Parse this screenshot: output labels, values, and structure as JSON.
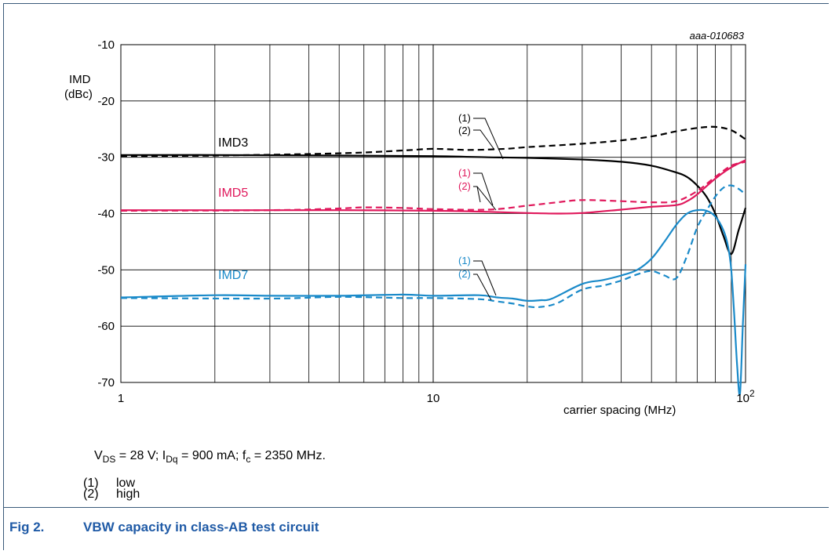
{
  "chart_data": {
    "type": "line",
    "code": "aaa-010683",
    "ylabel": "IMD",
    "yunit": "(dBc)",
    "xlabel": "carrier spacing (MHz)",
    "xscale": "log",
    "xlim": [
      1,
      100
    ],
    "ylim": [
      -70,
      -10
    ],
    "grid": true,
    "xticks": [
      {
        "value": 1,
        "label": "1"
      },
      {
        "value": 10,
        "label": "10"
      },
      {
        "value": 100,
        "label": "10",
        "sup": "2"
      }
    ],
    "yticks": [
      {
        "value": -10,
        "label": "-10"
      },
      {
        "value": -20,
        "label": "-20"
      },
      {
        "value": -30,
        "label": "-30"
      },
      {
        "value": -40,
        "label": "-40"
      },
      {
        "value": -50,
        "label": "-50"
      },
      {
        "value": -60,
        "label": "-60"
      },
      {
        "value": -70,
        "label": "-70"
      }
    ],
    "series": [
      {
        "group": "IMD3",
        "condition": "(1)",
        "style": "dashed",
        "color": "#000000",
        "x": [
          1,
          2,
          5,
          8,
          10,
          13,
          17,
          20,
          30,
          40,
          50,
          60,
          70,
          80,
          90,
          100
        ],
        "y": [
          -29.8,
          -29.7,
          -29.3,
          -28.8,
          -28.5,
          -28.7,
          -28.5,
          -28.2,
          -27.6,
          -27.0,
          -26.3,
          -25.4,
          -24.8,
          -24.6,
          -25.2,
          -26.8
        ]
      },
      {
        "group": "IMD3",
        "condition": "(2)",
        "style": "solid",
        "color": "#000000",
        "x": [
          1,
          2,
          5,
          10,
          15,
          20,
          30,
          40,
          50,
          60,
          65,
          70,
          75,
          80,
          85,
          90,
          95,
          100
        ],
        "y": [
          -29.6,
          -29.6,
          -29.7,
          -29.8,
          -30.0,
          -30.1,
          -30.4,
          -30.8,
          -31.5,
          -32.7,
          -33.5,
          -35.0,
          -37.0,
          -40.0,
          -44.0,
          -47.2,
          -43.0,
          -39.0
        ]
      },
      {
        "group": "IMD5",
        "condition": "(1)",
        "style": "dashed",
        "color": "#e0195c",
        "x": [
          1,
          3,
          5,
          6,
          8,
          10,
          15,
          20,
          25,
          30,
          40,
          50,
          60,
          70,
          80,
          90,
          100
        ],
        "y": [
          -39.5,
          -39.4,
          -39.1,
          -38.9,
          -39.0,
          -39.2,
          -39.3,
          -38.6,
          -38.0,
          -37.6,
          -37.8,
          -38.0,
          -37.8,
          -36.0,
          -33.5,
          -31.5,
          -30.8
        ]
      },
      {
        "group": "IMD5",
        "condition": "(2)",
        "style": "solid",
        "color": "#e0195c",
        "x": [
          1,
          3,
          5,
          10,
          15,
          20,
          25,
          30,
          40,
          50,
          60,
          65,
          70,
          80,
          90,
          100
        ],
        "y": [
          -39.4,
          -39.4,
          -39.4,
          -39.5,
          -39.7,
          -39.9,
          -40.0,
          -39.9,
          -39.3,
          -38.8,
          -38.5,
          -37.8,
          -36.6,
          -33.8,
          -31.8,
          -30.5
        ]
      },
      {
        "group": "IMD7",
        "condition": "(1)",
        "style": "solid",
        "color": "#1a8ac9",
        "x": [
          1,
          2,
          3,
          5,
          8,
          10,
          14,
          16,
          18,
          20,
          22,
          24,
          30,
          35,
          40,
          45,
          50,
          55,
          60,
          65,
          70,
          75,
          80,
          85,
          88,
          90,
          92,
          94,
          96,
          98,
          100
        ],
        "y": [
          -54.9,
          -54.5,
          -54.6,
          -54.6,
          -54.4,
          -54.6,
          -54.5,
          -54.9,
          -55.1,
          -55.5,
          -55.4,
          -55.1,
          -52.5,
          -51.8,
          -51.0,
          -50.0,
          -48.0,
          -45.0,
          -42.0,
          -40.0,
          -39.4,
          -39.5,
          -40.5,
          -43.0,
          -46.0,
          -50.0,
          -58.0,
          -67.0,
          -72.0,
          -60.0,
          -49.0
        ]
      },
      {
        "group": "IMD7",
        "condition": "(2)",
        "style": "dashed",
        "color": "#1a8ac9",
        "x": [
          1,
          3,
          5,
          8,
          10,
          14,
          16,
          18,
          20,
          22,
          25,
          30,
          35,
          40,
          45,
          50,
          55,
          60,
          65,
          70,
          75,
          80,
          85,
          90,
          95,
          100
        ],
        "y": [
          -55.0,
          -55.1,
          -54.8,
          -55.0,
          -55.0,
          -55.2,
          -55.6,
          -56.0,
          -56.5,
          -56.6,
          -55.9,
          -53.5,
          -52.8,
          -51.9,
          -50.8,
          -50.2,
          -51.0,
          -51.5,
          -47.5,
          -42.5,
          -39.5,
          -37.0,
          -35.4,
          -35.0,
          -35.6,
          -36.6
        ]
      }
    ],
    "annotations": [
      {
        "text": "IMD3",
        "color": "#000000"
      },
      {
        "text": "IMD5",
        "color": "#e0195c"
      },
      {
        "text": "IMD7",
        "color": "#1a8ac9"
      },
      {
        "text": "(1)",
        "color": "#000000"
      },
      {
        "text": "(2)",
        "color": "#000000"
      },
      {
        "text": "(1)",
        "color": "#e0195c"
      },
      {
        "text": "(2)",
        "color": "#e0195c"
      },
      {
        "text": "(1)",
        "color": "#1a8ac9"
      },
      {
        "text": "(2)",
        "color": "#1a8ac9"
      }
    ]
  },
  "conditions": {
    "v": "V",
    "v_sub": "DS",
    "v_val": " = 28 V; ",
    "i": "I",
    "i_sub": "Dq",
    "i_val": " = 900 mA; ",
    "f": "f",
    "f_sub": "c",
    "f_val": " = 2350 MHz."
  },
  "notes": [
    {
      "num": "(1)",
      "text": "low"
    },
    {
      "num": "(2)",
      "text": "high"
    }
  ],
  "caption": {
    "label": "Fig 2.",
    "title": "VBW capacity in class-AB test circuit"
  }
}
